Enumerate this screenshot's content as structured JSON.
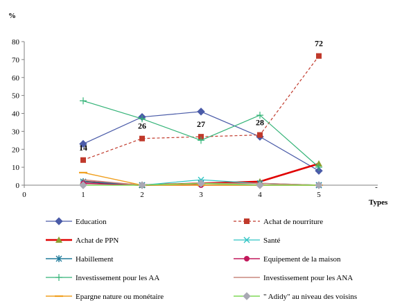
{
  "chart_data": {
    "type": "line",
    "ylabel": "%",
    "xlabel": "Types",
    "x": [
      1,
      2,
      3,
      4,
      5
    ],
    "x_ticks": [
      "0",
      "1",
      "2",
      "3",
      "4",
      "5"
    ],
    "x_extra_tick": "-",
    "xlim": [
      0,
      6
    ],
    "ylim": [
      0,
      80
    ],
    "y_ticks": [
      "0",
      "10",
      "20",
      "30",
      "40",
      "50",
      "60",
      "70",
      "80"
    ],
    "grid": false,
    "legend_position": "bottom",
    "series": [
      {
        "name": "Education",
        "values": [
          23,
          38,
          41,
          27,
          8
        ],
        "color": "#4A5BA8",
        "dash": "solid",
        "marker": "diamond",
        "width": 1.2
      },
      {
        "name": "Achat de nourriture",
        "values": [
          14,
          26,
          27,
          28,
          72
        ],
        "color": "#C0392B",
        "dash": "dashed",
        "marker": "square",
        "width": 1.2
      },
      {
        "name": "Achat de PPN",
        "values": [
          2,
          0,
          1,
          2,
          12
        ],
        "color": "#E00000",
        "dash": "solid",
        "marker": "triangle",
        "marker_color": "#8CA033",
        "width": 2.6
      },
      {
        "name": "Santé",
        "values": [
          1,
          0,
          3,
          1,
          0
        ],
        "color": "#2EC4C4",
        "dash": "solid",
        "marker": "x",
        "width": 1.2
      },
      {
        "name": "Habillement",
        "values": [
          2,
          0,
          1,
          1,
          0
        ],
        "color": "#1F7A9A",
        "dash": "solid",
        "marker": "star",
        "width": 1.6
      },
      {
        "name": "Equipement de la maison",
        "values": [
          1,
          0,
          0,
          0,
          0
        ],
        "color": "#C2185B",
        "dash": "solid",
        "marker": "circle",
        "width": 1.6
      },
      {
        "name": "Investissement pour les AA",
        "values": [
          47,
          37,
          25,
          39,
          10
        ],
        "color": "#33B377",
        "dash": "solid",
        "marker": "plus",
        "width": 1.2
      },
      {
        "name": "Investissement pour les  ANA",
        "values": [
          3,
          0,
          1,
          1,
          0
        ],
        "color": "#C9897F",
        "dash": "solid",
        "marker": "none",
        "width": 1.6
      },
      {
        "name": "Epargne nature ou monétaire",
        "values": [
          7,
          0,
          0,
          0,
          0
        ],
        "color": "#F0A020",
        "dash": "solid",
        "marker": "dash",
        "width": 1.4
      },
      {
        "name": "\" Adidy\" au niveau des voisins",
        "values": [
          0,
          0,
          1,
          0,
          0
        ],
        "color": "#7ED957",
        "dash": "solid",
        "marker": "diamond",
        "marker_color": "#A9A9B4",
        "width": 1.6
      }
    ],
    "annotations": [
      {
        "text": "14",
        "series": 1,
        "point": 0
      },
      {
        "text": "26",
        "series": 1,
        "point": 1
      },
      {
        "text": "27",
        "series": 1,
        "point": 2
      },
      {
        "text": "28",
        "series": 1,
        "point": 3
      },
      {
        "text": "72",
        "series": 1,
        "point": 4
      }
    ]
  }
}
